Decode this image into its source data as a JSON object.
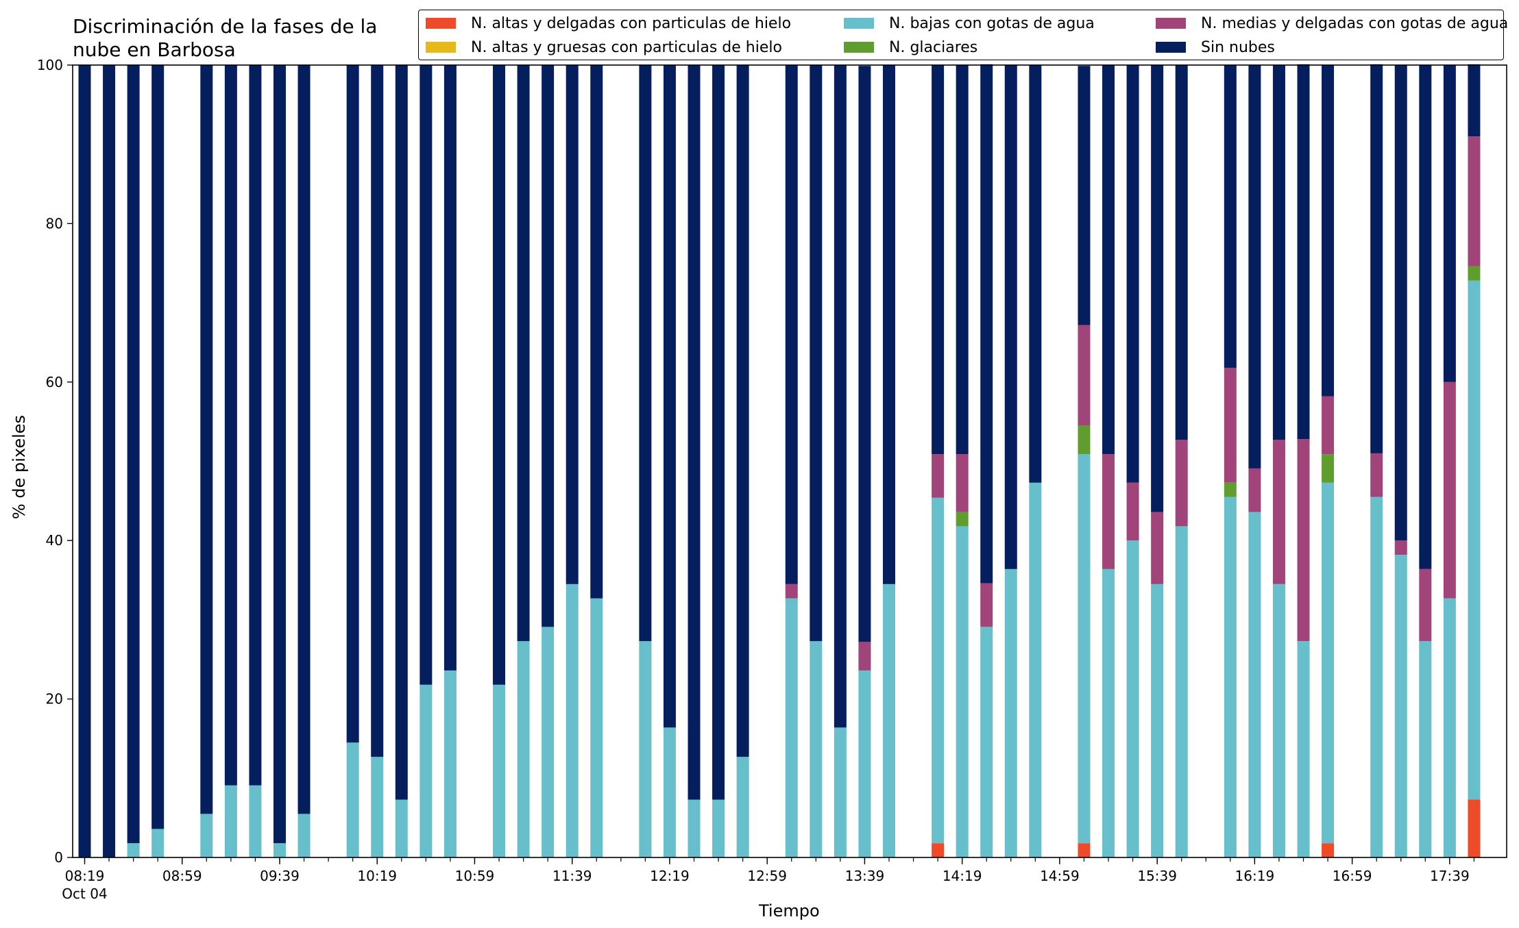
{
  "chart_data": {
    "type": "bar",
    "stacked": true,
    "title": "Discriminación de la fases de la\nnube en Barbosa",
    "xlabel": "Tiempo",
    "ylabel": "% de pixeles",
    "ylim": [
      0,
      100
    ],
    "yticks": [
      0,
      20,
      40,
      60,
      80,
      100
    ],
    "x_start": "08:19",
    "x_interval_minutes": 10,
    "x_end": "17:49",
    "xticks": [
      "08:19",
      "08:59",
      "09:39",
      "10:19",
      "10:59",
      "11:39",
      "12:19",
      "12:59",
      "13:39",
      "14:19",
      "14:59",
      "15:39",
      "16:19",
      "16:59",
      "17:39"
    ],
    "first_tick_sublabel": "Oct 04",
    "grid": false,
    "legend_position": "top-right",
    "categories": [
      "08:19",
      "08:29",
      "08:39",
      "08:49",
      "08:59",
      "09:09",
      "09:19",
      "09:29",
      "09:39",
      "09:49",
      "09:59",
      "10:09",
      "10:19",
      "10:29",
      "10:39",
      "10:49",
      "10:59",
      "11:09",
      "11:19",
      "11:29",
      "11:39",
      "11:49",
      "11:59",
      "12:09",
      "12:19",
      "12:29",
      "12:39",
      "12:49",
      "12:59",
      "13:09",
      "13:19",
      "13:29",
      "13:39",
      "13:49",
      "13:59",
      "14:09",
      "14:19",
      "14:29",
      "14:39",
      "14:49",
      "14:59",
      "15:09",
      "15:19",
      "15:29",
      "15:39",
      "15:49",
      "15:59",
      "16:09",
      "16:19",
      "16:29",
      "16:39",
      "16:49",
      "16:59",
      "17:09",
      "17:19",
      "17:29",
      "17:39",
      "17:49"
    ],
    "series": [
      {
        "name": "N. altas y delgadas con particulas de hielo",
        "color": "#ee4b2b",
        "values": [
          0,
          0,
          0,
          0,
          null,
          0,
          0,
          0,
          0,
          0,
          null,
          0,
          0,
          0,
          0,
          0,
          null,
          0,
          0,
          0,
          0,
          0,
          null,
          0,
          0,
          0,
          0,
          0,
          null,
          0,
          0,
          0,
          0,
          0,
          null,
          1.8,
          0,
          0,
          0,
          0,
          null,
          1.8,
          0,
          0,
          0,
          0,
          null,
          0,
          0,
          0,
          0,
          1.8,
          null,
          0,
          0,
          0,
          0,
          7.3
        ]
      },
      {
        "name": "N. altas y gruesas con particulas de hielo",
        "color": "#e6b919",
        "values": [
          0,
          0,
          0,
          0,
          null,
          0,
          0,
          0,
          0,
          0,
          null,
          0,
          0,
          0,
          0,
          0,
          null,
          0,
          0,
          0,
          0,
          0,
          null,
          0,
          0,
          0,
          0,
          0,
          null,
          0,
          0,
          0,
          0,
          0,
          null,
          0,
          0,
          0,
          0,
          0,
          null,
          0,
          0,
          0,
          0,
          0,
          null,
          0,
          0,
          0,
          0,
          0,
          null,
          0,
          0,
          0,
          0,
          0
        ]
      },
      {
        "name": "N. bajas con gotas de agua",
        "color": "#66bfcb",
        "values": [
          0,
          0,
          1.8,
          3.6,
          null,
          5.5,
          9.1,
          9.1,
          1.8,
          5.5,
          null,
          14.5,
          12.7,
          7.3,
          21.8,
          23.6,
          null,
          21.8,
          27.3,
          29.1,
          34.5,
          32.7,
          null,
          27.3,
          16.4,
          7.3,
          7.3,
          12.7,
          null,
          32.7,
          27.3,
          16.4,
          23.6,
          34.5,
          null,
          43.6,
          41.8,
          29.1,
          36.4,
          47.3,
          null,
          49.1,
          36.4,
          40.0,
          34.5,
          41.8,
          null,
          45.5,
          43.6,
          34.5,
          27.3,
          45.5,
          null,
          45.5,
          38.2,
          27.3,
          32.7,
          65.5
        ]
      },
      {
        "name": "N. glaciares",
        "color": "#5f9e2e",
        "values": [
          0,
          0,
          0,
          0,
          null,
          0,
          0,
          0,
          0,
          0,
          null,
          0,
          0,
          0,
          0,
          0,
          null,
          0,
          0,
          0,
          0,
          0,
          null,
          0,
          0,
          0,
          0,
          0,
          null,
          0,
          0,
          0,
          0,
          0,
          null,
          0,
          1.8,
          0,
          0,
          0,
          null,
          3.6,
          0,
          0,
          0,
          0,
          null,
          1.8,
          0,
          0,
          0,
          3.6,
          null,
          0,
          0,
          0,
          0,
          1.8
        ]
      },
      {
        "name": "N. medias y delgadas con gotas de agua",
        "color": "#a04479",
        "values": [
          0,
          0,
          0,
          0,
          null,
          0,
          0,
          0,
          0,
          0,
          null,
          0,
          0,
          0,
          0,
          0,
          null,
          0,
          0,
          0,
          0,
          0,
          null,
          0,
          0,
          0,
          0,
          0,
          null,
          1.8,
          0,
          0,
          3.6,
          0,
          null,
          5.5,
          7.3,
          5.5,
          0,
          0,
          null,
          12.7,
          14.5,
          7.3,
          9.1,
          10.9,
          null,
          14.5,
          5.5,
          18.2,
          25.5,
          7.3,
          null,
          5.5,
          1.8,
          9.1,
          27.3,
          16.4
        ]
      },
      {
        "name": "Sin nubes",
        "color": "#041e5e",
        "values": [
          100,
          100,
          98.2,
          96.4,
          null,
          94.5,
          90.9,
          90.9,
          98.2,
          94.5,
          null,
          85.5,
          87.3,
          92.7,
          78.2,
          76.4,
          null,
          78.2,
          72.7,
          70.9,
          65.5,
          67.3,
          null,
          72.7,
          83.6,
          92.7,
          92.7,
          87.3,
          null,
          65.5,
          72.7,
          83.6,
          72.7,
          65.5,
          null,
          49.1,
          49.1,
          65.5,
          63.6,
          52.7,
          null,
          32.7,
          49.1,
          52.7,
          56.4,
          47.3,
          null,
          38.2,
          50.9,
          47.3,
          47.3,
          41.8,
          null,
          49.1,
          60.0,
          63.6,
          40.0,
          9.1
        ]
      }
    ]
  }
}
